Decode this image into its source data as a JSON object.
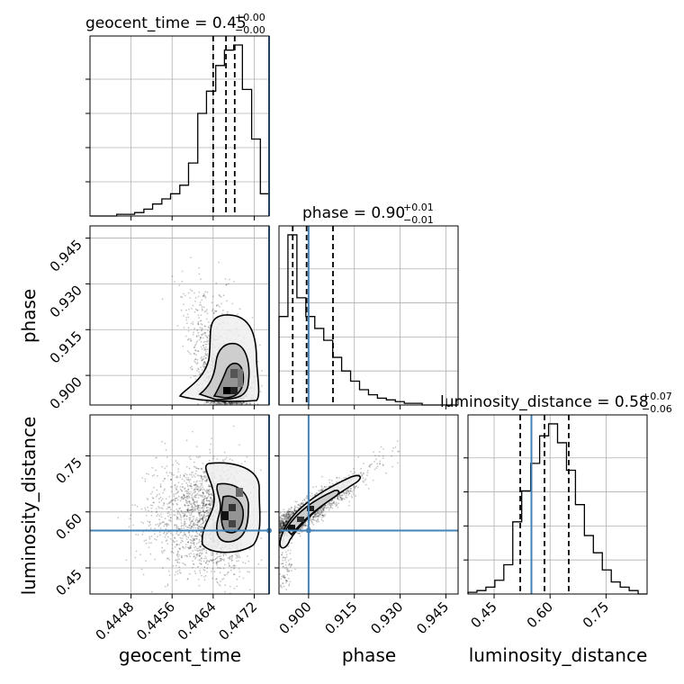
{
  "colors": {
    "truth": "#4682b4",
    "hist": "#000000",
    "grid": "#b0b0b0"
  },
  "chart_data": {
    "type": "corner",
    "grid": true,
    "parameters": [
      "geocent_time",
      "phase",
      "luminosity_distance"
    ],
    "truths": {
      "geocent_time": 0.44749,
      "phase": 0.9,
      "luminosity_distance": 0.55
    },
    "ranges": {
      "geocent_time": [
        0.444,
        0.44749
      ],
      "phase": [
        0.8903,
        0.949
      ],
      "luminosity_distance": [
        0.38,
        0.86
      ]
    },
    "ticks": {
      "geocent_time": {
        "values": [
          0.4448,
          0.4456,
          0.4464,
          0.4472
        ],
        "labels": [
          "0.4448",
          "0.4456",
          "0.4464",
          "0.4472"
        ]
      },
      "phase": {
        "values": [
          0.9,
          0.915,
          0.93,
          0.945
        ],
        "labels": [
          "0.900",
          "0.915",
          "0.930",
          "0.945"
        ]
      },
      "luminosity_distance": {
        "values": [
          0.45,
          0.6,
          0.75
        ],
        "labels": [
          "0.45",
          "0.60",
          "0.75"
        ]
      }
    },
    "titles": {
      "geocent_time": {
        "text": "geocent_time = 0.45",
        "plus": "+0.00",
        "minus": "−0.00"
      },
      "phase": {
        "text": "phase = 0.90",
        "plus": "+0.01",
        "minus": "−0.01"
      },
      "luminosity_distance": {
        "text": "luminosity_distance = 0.58",
        "plus": "+0.07",
        "minus": "−0.06"
      }
    },
    "axis_labels": {
      "geocent_time": "geocent_time",
      "phase": "phase",
      "luminosity_distance": "luminosity_distance"
    },
    "histograms": {
      "geocent_time": {
        "bins": [
          0.444,
          0.44417,
          0.44435,
          0.44452,
          0.4447,
          0.44487,
          0.44505,
          0.44522,
          0.4454,
          0.44557,
          0.44575,
          0.44592,
          0.4461,
          0.44627,
          0.44645,
          0.44662,
          0.4468,
          0.44697,
          0.44715,
          0.44732,
          0.44749
        ],
        "counts": [
          0,
          0,
          0,
          1,
          1,
          2,
          4,
          7,
          10,
          13,
          18,
          31,
          60,
          73,
          88,
          97,
          100,
          74,
          45,
          13
        ]
      },
      "phase": {
        "bins": [
          0.8903,
          0.89323,
          0.89617,
          0.8991,
          0.90203,
          0.90497,
          0.9079,
          0.91083,
          0.91377,
          0.9167,
          0.91963,
          0.92257,
          0.9255,
          0.92843,
          0.93137,
          0.9343,
          0.93723,
          0.94017,
          0.9431,
          0.94603,
          0.949
        ],
        "counts": [
          52,
          100,
          63,
          52,
          45,
          38,
          28,
          20,
          14,
          9,
          6,
          4,
          3,
          2,
          1,
          1,
          0,
          0,
          0,
          0
        ]
      },
      "luminosity_distance": {
        "bins": [
          0.38,
          0.404,
          0.428,
          0.452,
          0.476,
          0.5,
          0.524,
          0.548,
          0.572,
          0.596,
          0.62,
          0.644,
          0.668,
          0.692,
          0.716,
          0.74,
          0.764,
          0.788,
          0.812,
          0.836,
          0.86
        ],
        "counts": [
          1,
          2,
          4,
          8,
          17,
          42,
          60,
          76,
          92,
          99,
          88,
          72,
          52,
          34,
          24,
          14,
          7,
          4,
          2,
          0
        ]
      }
    },
    "quantiles": {
      "geocent_time": [
        0.4464,
        0.44665,
        0.44682
      ],
      "phase": [
        0.8948,
        0.89935,
        0.908
      ],
      "luminosity_distance": [
        0.52,
        0.585,
        0.65
      ]
    }
  }
}
